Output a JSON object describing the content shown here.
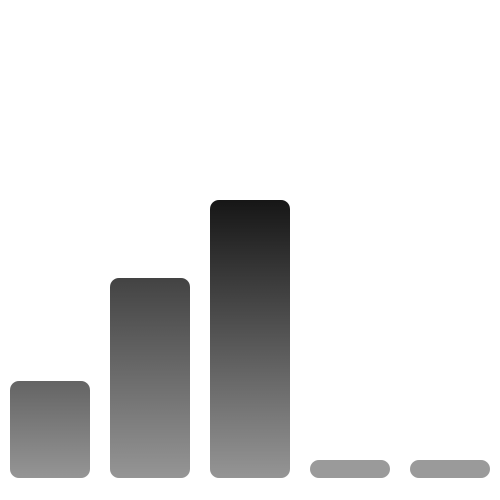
{
  "icon": {
    "semantic": "signal-strength-icon",
    "levels": [
      0.35,
      0.72,
      1.0,
      0,
      0
    ],
    "active_bars": 3,
    "total_bars": 5,
    "colors": {
      "background": "#ffffff",
      "active_top": "#141414",
      "active_bottom": "#959595",
      "inactive": "#9a9a9a"
    }
  }
}
